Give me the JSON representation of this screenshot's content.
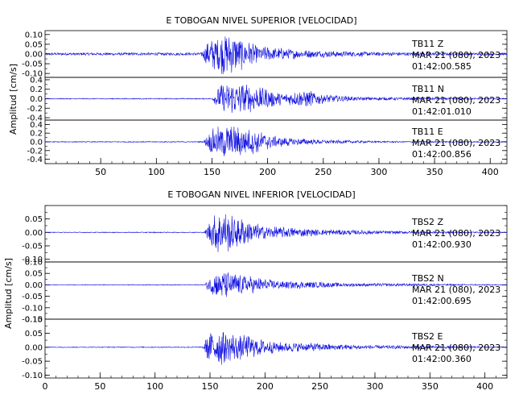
{
  "chart_data": [
    {
      "type": "line",
      "title": "E TOBOGAN NIVEL SUPERIOR [VELOCIDAD]",
      "ylabel": "Amplitud [cm/s]",
      "xlim": [
        0,
        415
      ],
      "x_ticks": [
        "50",
        "100",
        "150",
        "200",
        "250",
        "300",
        "350",
        "400"
      ],
      "series": [
        {
          "station": "TB11",
          "component": "Z",
          "date": "MAR 21 (080), 2023",
          "time": "01:42:00.585",
          "ylim": [
            -0.12,
            0.12
          ],
          "y_ticks": [
            "0.10",
            "0.05",
            "0.00",
            "-0.05",
            "-0.10"
          ],
          "y_tick_values": [
            0.1,
            0.05,
            0.0,
            -0.05,
            -0.1
          ],
          "noise": 0.007,
          "envelope": [
            [
              0,
              0.007
            ],
            [
              140,
              0.008
            ],
            [
              146,
              0.07
            ],
            [
              160,
              0.11
            ],
            [
              172,
              0.1
            ],
            [
              190,
              0.045
            ],
            [
              230,
              0.022
            ],
            [
              290,
              0.012
            ],
            [
              350,
              0.008
            ],
            [
              415,
              0.007
            ]
          ]
        },
        {
          "station": "TB11",
          "component": "N",
          "date": "MAR 21 (080), 2023",
          "time": "01:42:01.010",
          "ylim": [
            -0.45,
            0.45
          ],
          "y_ticks": [
            "0.4",
            "0.2",
            "0.0",
            "-0.2",
            "-0.4"
          ],
          "y_tick_values": [
            0.4,
            0.2,
            0.0,
            -0.2,
            -0.4
          ],
          "noise": 0.01,
          "envelope": [
            [
              0,
              0.01
            ],
            [
              150,
              0.012
            ],
            [
              157,
              0.3
            ],
            [
              170,
              0.37
            ],
            [
              195,
              0.25
            ],
            [
              215,
              0.12
            ],
            [
              235,
              0.2
            ],
            [
              250,
              0.1
            ],
            [
              280,
              0.04
            ],
            [
              415,
              0.012
            ]
          ]
        },
        {
          "station": "TB11",
          "component": "E",
          "date": "MAR 21 (080), 2023",
          "time": "01:42:00.856",
          "ylim": [
            -0.5,
            0.5
          ],
          "y_ticks": [
            "0.4",
            "0.2",
            "0.0",
            "-0.2",
            "-0.4"
          ],
          "y_tick_values": [
            0.4,
            0.2,
            0.0,
            -0.2,
            -0.4
          ],
          "noise": 0.01,
          "envelope": [
            [
              0,
              0.01
            ],
            [
              142,
              0.012
            ],
            [
              150,
              0.3
            ],
            [
              162,
              0.42
            ],
            [
              185,
              0.3
            ],
            [
              210,
              0.12
            ],
            [
              250,
              0.05
            ],
            [
              300,
              0.02
            ],
            [
              415,
              0.012
            ]
          ]
        }
      ]
    },
    {
      "type": "line",
      "title": "E TOBOGAN NIVEL INFERIOR [VELOCIDAD]",
      "ylabel": "Amplitud [cm/s]",
      "xlim": [
        0,
        420
      ],
      "x_ticks": [
        "0",
        "50",
        "100",
        "150",
        "200",
        "250",
        "300",
        "350",
        "400"
      ],
      "series": [
        {
          "station": "TBS2",
          "component": "Z",
          "date": "MAR 21 (080), 2023",
          "time": "01:42:00.930",
          "ylim": [
            -0.11,
            0.1
          ],
          "y_ticks": [
            "0.05",
            "0.00",
            "-0.05",
            "-0.10"
          ],
          "y_tick_values": [
            0.05,
            0.0,
            -0.05,
            -0.1
          ],
          "noise": 0.0015,
          "envelope": [
            [
              0,
              0.0015
            ],
            [
              145,
              0.002
            ],
            [
              150,
              0.05
            ],
            [
              158,
              0.09
            ],
            [
              172,
              0.065
            ],
            [
              200,
              0.025
            ],
            [
              250,
              0.012
            ],
            [
              330,
              0.005
            ],
            [
              420,
              0.002
            ]
          ]
        },
        {
          "station": "TBS2",
          "component": "N",
          "date": "MAR 21 (080), 2023",
          "time": "01:42:00.695",
          "ylim": [
            -0.15,
            0.1
          ],
          "y_ticks": [
            "0.10",
            "0.05",
            "0.00",
            "-0.05",
            "-0.10",
            "-0.15"
          ],
          "y_tick_values": [
            0.1,
            0.05,
            0.0,
            -0.05,
            -0.1,
            -0.15
          ],
          "noise": 0.0015,
          "envelope": [
            [
              0,
              0.0015
            ],
            [
              145,
              0.002
            ],
            [
              150,
              0.045
            ],
            [
              160,
              0.07
            ],
            [
              175,
              0.05
            ],
            [
              210,
              0.02
            ],
            [
              280,
              0.008
            ],
            [
              420,
              0.002
            ]
          ]
        },
        {
          "station": "TBS2",
          "component": "E",
          "date": "MAR 21 (080), 2023",
          "time": "01:42:00.360",
          "ylim": [
            -0.11,
            0.1
          ],
          "y_ticks": [
            "0.10",
            "0.05",
            "0.00",
            "-0.05",
            "-0.10"
          ],
          "y_tick_values": [
            0.1,
            0.05,
            0.0,
            -0.05,
            -0.1
          ],
          "noise": 0.0015,
          "envelope": [
            [
              0,
              0.0015
            ],
            [
              143,
              0.002
            ],
            [
              148,
              0.05
            ],
            [
              158,
              0.07
            ],
            [
              175,
              0.05
            ],
            [
              210,
              0.02
            ],
            [
              290,
              0.008
            ],
            [
              420,
              0.002
            ]
          ]
        }
      ]
    }
  ]
}
